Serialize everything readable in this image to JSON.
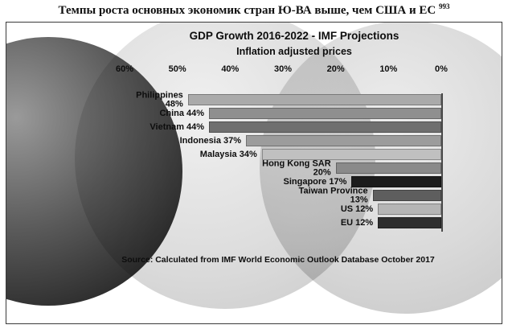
{
  "heading": {
    "text": "Темпы роста основных экономик стран Ю-ВА выше, чем США и ЕС",
    "superscript": "993"
  },
  "chart_data": {
    "type": "bar",
    "orientation": "horizontal",
    "anchor": "right",
    "title": "GDP Growth 2016-2022 - IMF Projections",
    "subtitle": "Inflation adjusted prices",
    "source": "Source: Calculated from IMF World Economic Outlook Database October 2017",
    "axis_ticks": [
      "60%",
      "50%",
      "40%",
      "30%",
      "20%",
      "10%",
      "0%"
    ],
    "xlim": [
      60,
      0
    ],
    "axis_reversed": true,
    "grid": false,
    "categories": [
      "Philippines",
      "China",
      "Vietnam",
      "Indonesia",
      "Malaysia",
      "Hong Kong SAR",
      "Singapore",
      "Taiwan Province",
      "US",
      "EU"
    ],
    "values": [
      48,
      44,
      44,
      37,
      34,
      20,
      17,
      13,
      12,
      12
    ],
    "labels": [
      "Philippines 48%",
      "China 44%",
      "Vietnam 44%",
      "Indonesia 37%",
      "Malaysia 34%",
      "Hong Kong SAR\n20%",
      "Singapore 17%",
      "Taiwan Province\n13%",
      "US 12%",
      "EU 12%"
    ],
    "bar_colors": [
      "#aaaaaa",
      "#8f8f8f",
      "#6f6f6f",
      "#9c9c9c",
      "#c0c0c0",
      "#8a8a8a",
      "#1c1c1c",
      "#5e5e5e",
      "#b5b5b5",
      "#2e2e2e"
    ]
  }
}
